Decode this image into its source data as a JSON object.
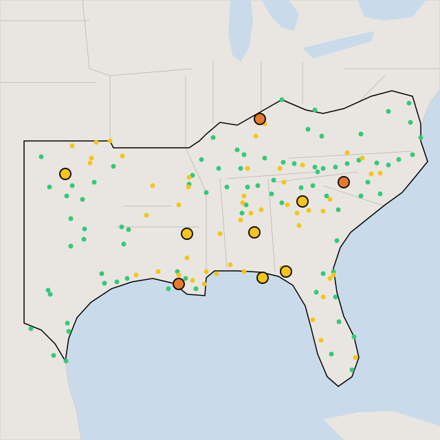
{
  "map": {
    "point_colors": {
      "small_green": "#34c978",
      "small_yellow": "#f5c518",
      "large_yellow": "#f5c518",
      "large_orange": "#e8792b"
    }
  }
}
